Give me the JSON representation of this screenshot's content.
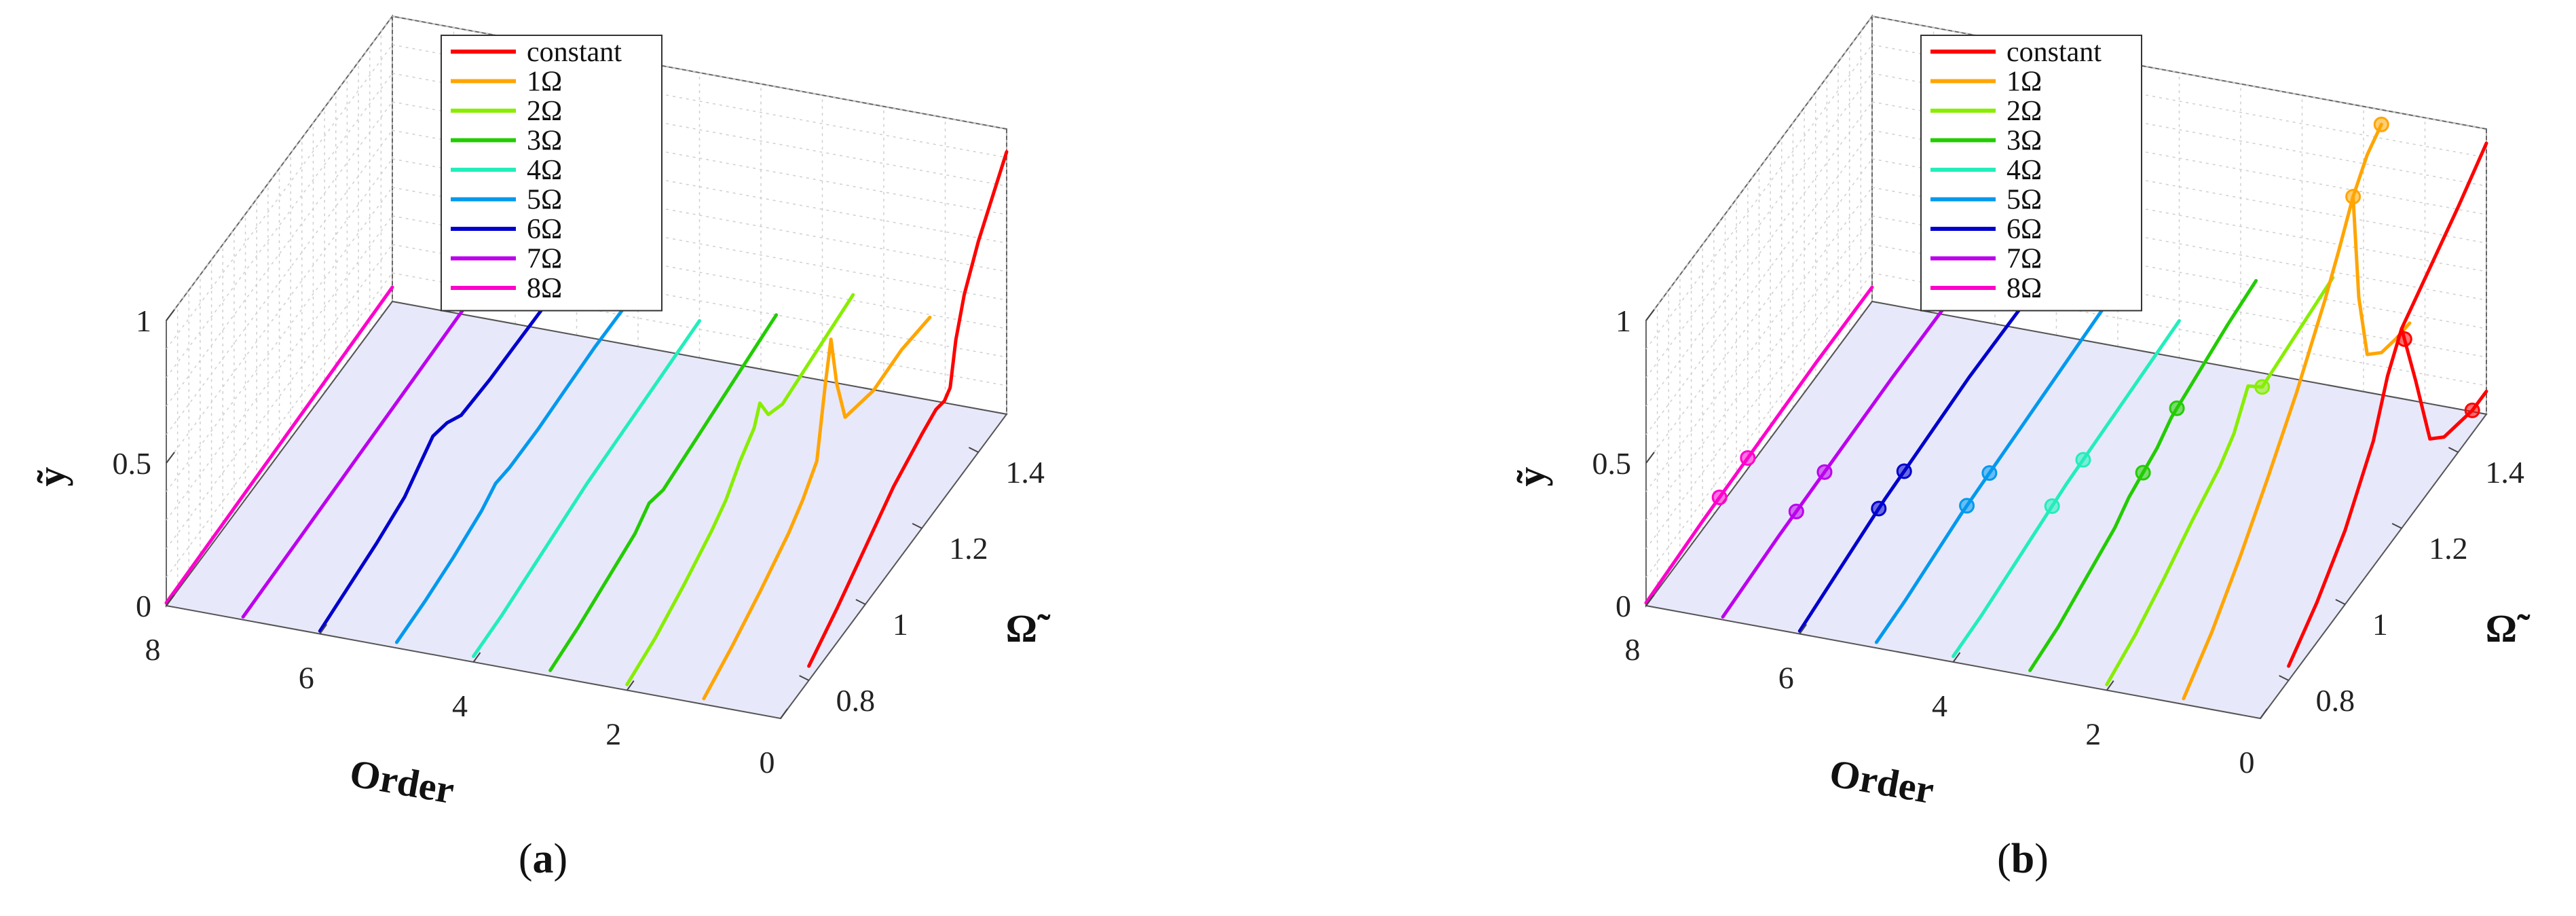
{
  "chart_data": [
    {
      "type": "line",
      "subtype": "3d-waterfall",
      "caption": "a",
      "xlabel": "Order",
      "ylabel": "ỹ",
      "zlabel": "Ω̃",
      "order_ticks": [
        "0",
        "2",
        "4",
        "6",
        "8"
      ],
      "omega_ticks": [
        "0.8",
        "1",
        "1.2",
        "1.4"
      ],
      "y_ticks": [
        "0",
        "0.5",
        "1"
      ],
      "order_range": [
        0,
        8
      ],
      "omega_range": [
        0.7,
        1.5
      ],
      "y_range": [
        0,
        1
      ],
      "grid": true,
      "legend_position": "top",
      "legend": [
        "constant",
        "1Ω",
        "2Ω",
        "3Ω",
        "4Ω",
        "5Ω",
        "6Ω",
        "7Ω",
        "8Ω"
      ],
      "series": [
        {
          "name": "constant",
          "color": "#ff0000",
          "order": 0,
          "omega": [
            0.8,
            0.9,
            1.0,
            1.1,
            1.2,
            1.25,
            1.28,
            1.3,
            1.32,
            1.35,
            1.4,
            1.5
          ],
          "y": [
            0.05,
            0.12,
            0.2,
            0.28,
            0.33,
            0.35,
            0.34,
            0.36,
            0.5,
            0.62,
            0.74,
            0.92
          ],
          "markers": []
        },
        {
          "name": "1Ω",
          "color": "#ffa500",
          "order": 1,
          "omega": [
            0.7,
            0.8,
            0.9,
            1.0,
            1.05,
            1.1,
            1.13,
            1.15,
            1.17,
            1.2,
            1.3,
            1.4,
            1.45,
            1.5
          ],
          "y": [
            0.02,
            0.07,
            0.13,
            0.2,
            0.25,
            0.32,
            0.55,
            0.68,
            0.5,
            0.34,
            0.3,
            0.31,
            0.3,
            0.29
          ],
          "markers": []
        },
        {
          "name": "2Ω",
          "color": "#88ee00",
          "order": 2,
          "omega": [
            0.7,
            0.8,
            0.9,
            1.0,
            1.05,
            1.1,
            1.15,
            1.17,
            1.2,
            1.25,
            1.3,
            1.4,
            1.5
          ],
          "y": [
            0.02,
            0.05,
            0.1,
            0.16,
            0.2,
            0.27,
            0.32,
            0.38,
            0.3,
            0.27,
            0.28,
            0.3,
            0.32
          ],
          "markers": []
        },
        {
          "name": "3Ω",
          "color": "#22cc00",
          "order": 3,
          "omega": [
            0.7,
            0.8,
            0.9,
            1.0,
            1.05,
            1.1,
            1.2,
            1.3,
            1.4,
            1.5
          ],
          "y": [
            0.02,
            0.04,
            0.07,
            0.1,
            0.14,
            0.12,
            0.14,
            0.16,
            0.18,
            0.2
          ],
          "markers": []
        },
        {
          "name": "4Ω",
          "color": "#22eebb",
          "order": 4,
          "omega": [
            0.7,
            0.8,
            0.9,
            1.0,
            1.1,
            1.2,
            1.3,
            1.4,
            1.5
          ],
          "y": [
            0.02,
            0.03,
            0.05,
            0.07,
            0.09,
            0.1,
            0.11,
            0.12,
            0.13
          ],
          "markers": []
        },
        {
          "name": "5Ω",
          "color": "#0099ee",
          "order": 5,
          "omega": [
            0.7,
            0.8,
            0.9,
            1.0,
            1.05,
            1.1,
            1.2,
            1.3,
            1.4,
            1.5
          ],
          "y": [
            0.02,
            0.03,
            0.05,
            0.08,
            0.11,
            0.1,
            0.1,
            0.11,
            0.12,
            0.12
          ],
          "markers": []
        },
        {
          "name": "6Ω",
          "color": "#0000cc",
          "order": 6,
          "omega": [
            0.7,
            0.8,
            0.9,
            1.0,
            1.05,
            1.1,
            1.15,
            1.2,
            1.3,
            1.4,
            1.5
          ],
          "y": [
            0.01,
            0.03,
            0.05,
            0.08,
            0.12,
            0.16,
            0.14,
            0.1,
            0.09,
            0.09,
            0.09
          ],
          "markers": []
        },
        {
          "name": "7Ω",
          "color": "#bb00ee",
          "order": 7,
          "omega": [
            0.7,
            0.9,
            1.1,
            1.3,
            1.5
          ],
          "y": [
            0.01,
            0.02,
            0.03,
            0.04,
            0.05
          ],
          "markers": []
        },
        {
          "name": "8Ω",
          "color": "#ff00cc",
          "order": 8,
          "omega": [
            0.7,
            0.9,
            1.1,
            1.3,
            1.5
          ],
          "y": [
            0.01,
            0.02,
            0.03,
            0.04,
            0.05
          ],
          "markers": []
        }
      ]
    },
    {
      "type": "line",
      "subtype": "3d-waterfall",
      "caption": "b",
      "xlabel": "Order",
      "ylabel": "ỹ",
      "zlabel": "Ω̃",
      "order_ticks": [
        "0",
        "2",
        "4",
        "6",
        "8"
      ],
      "omega_ticks": [
        "0.8",
        "1",
        "1.2",
        "1.4"
      ],
      "y_ticks": [
        "0",
        "0.5",
        "1"
      ],
      "order_range": [
        0,
        8
      ],
      "omega_range": [
        0.7,
        1.5
      ],
      "y_range": [
        0,
        1
      ],
      "grid": true,
      "legend_position": "top",
      "legend": [
        "constant",
        "1Ω",
        "2Ω",
        "3Ω",
        "4Ω",
        "5Ω",
        "6Ω",
        "7Ω",
        "8Ω"
      ],
      "series": [
        {
          "name": "constant",
          "color": "#ff0000",
          "order": 0,
          "omega": [
            0.8,
            0.9,
            1.0,
            1.1,
            1.15,
            1.2,
            1.3,
            1.4,
            1.5
          ],
          "y": [
            0.05,
            0.14,
            0.26,
            0.44,
            0.6,
            0.7,
            0.78,
            0.86,
            0.95
          ],
          "markers": [],
          "lower_branch": {
            "omega": [
              1.2,
              1.25,
              1.3,
              1.35,
              1.4,
              1.45,
              1.5
            ],
            "y": [
              0.7,
              0.45,
              0.18,
              0.12,
              0.1,
              0.08,
              0.08
            ]
          },
          "lower_markers": [
            1.21,
            1.45
          ]
        },
        {
          "name": "1Ω",
          "color": "#ffa500",
          "order": 1,
          "omega": [
            0.7,
            0.8,
            0.9,
            1.0,
            1.1,
            1.2,
            1.25,
            1.3,
            1.35,
            1.4
          ],
          "y": [
            0.02,
            0.12,
            0.25,
            0.4,
            0.56,
            0.75,
            0.86,
            0.98,
            1.06,
            1.1
          ],
          "markers": [
            1.3,
            1.4
          ],
          "lower_branch": {
            "omega": [
              1.3,
              1.32,
              1.35,
              1.4,
              1.45,
              1.5
            ],
            "y": [
              0.98,
              0.6,
              0.36,
              0.3,
              0.28,
              0.27
            ]
          },
          "lower_markers": []
        },
        {
          "name": "2Ω",
          "color": "#88ee00",
          "order": 2,
          "omega": [
            0.7,
            0.8,
            0.9,
            1.0,
            1.1,
            1.15,
            1.2,
            1.25,
            1.3,
            1.4,
            1.5
          ],
          "y": [
            0.02,
            0.06,
            0.12,
            0.19,
            0.25,
            0.3,
            0.4,
            0.33,
            0.34,
            0.36,
            0.38
          ],
          "markers": [
            1.25
          ],
          "lower_branch": null,
          "lower_markers": []
        },
        {
          "name": "3Ω",
          "color": "#22cc00",
          "order": 3,
          "omega": [
            0.7,
            0.8,
            0.9,
            1.0,
            1.05,
            1.1,
            1.15,
            1.2,
            1.3,
            1.4,
            1.5
          ],
          "y": [
            0.02,
            0.04,
            0.08,
            0.12,
            0.16,
            0.18,
            0.2,
            0.24,
            0.27,
            0.3,
            0.32
          ],
          "markers": [
            1.1,
            1.22
          ],
          "lower_branch": null,
          "lower_markers": []
        },
        {
          "name": "4Ω",
          "color": "#22eebb",
          "order": 4,
          "omega": [
            0.7,
            0.8,
            0.9,
            1.0,
            1.1,
            1.2,
            1.3,
            1.4,
            1.5
          ],
          "y": [
            0.02,
            0.03,
            0.05,
            0.07,
            0.09,
            0.1,
            0.11,
            0.12,
            0.13
          ],
          "markers": [
            1.05,
            1.16
          ],
          "lower_branch": null,
          "lower_markers": []
        },
        {
          "name": "5Ω",
          "color": "#0099ee",
          "order": 5,
          "omega": [
            0.7,
            0.8,
            0.9,
            1.0,
            1.1,
            1.2,
            1.3,
            1.4,
            1.5
          ],
          "y": [
            0.02,
            0.03,
            0.05,
            0.07,
            0.08,
            0.09,
            0.1,
            0.11,
            0.12
          ],
          "markers": [
            1.02,
            1.1
          ],
          "lower_branch": null,
          "lower_markers": []
        },
        {
          "name": "6Ω",
          "color": "#0000cc",
          "order": 6,
          "omega": [
            0.7,
            0.8,
            0.9,
            1.0,
            1.1,
            1.2,
            1.3,
            1.4,
            1.5
          ],
          "y": [
            0.01,
            0.03,
            0.05,
            0.07,
            0.08,
            0.09,
            0.1,
            0.1,
            0.1
          ],
          "markers": [
            0.98,
            1.07
          ],
          "lower_branch": null,
          "lower_markers": []
        },
        {
          "name": "7Ω",
          "color": "#bb00ee",
          "order": 7,
          "omega": [
            0.7,
            0.9,
            1.1,
            1.3,
            1.5
          ],
          "y": [
            0.01,
            0.03,
            0.04,
            0.05,
            0.05
          ],
          "markers": [
            0.96,
            1.06
          ],
          "lower_branch": null,
          "lower_markers": []
        },
        {
          "name": "8Ω",
          "color": "#ff00cc",
          "order": 8,
          "omega": [
            0.7,
            0.9,
            1.1,
            1.3,
            1.5
          ],
          "y": [
            0.01,
            0.03,
            0.04,
            0.05,
            0.05
          ],
          "markers": [
            0.96,
            1.06
          ],
          "lower_branch": null,
          "lower_markers": []
        }
      ]
    }
  ]
}
